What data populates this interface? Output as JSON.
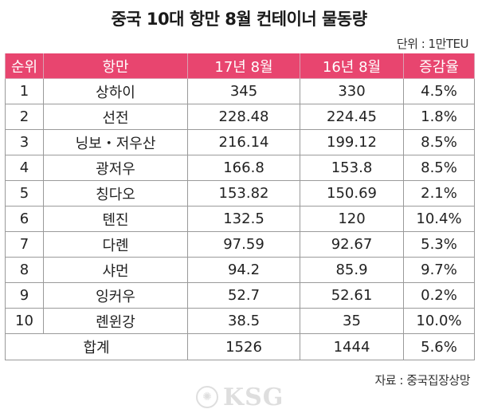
{
  "title": "중국 10대 항만 8월 컨테이너 물동량",
  "unit": "단위 : 1만TEU",
  "colors": {
    "header_bg": "#e8456f",
    "header_text": "#ffffff"
  },
  "table": {
    "headers": [
      "순위",
      "항만",
      "17년 8월",
      "16년 8월",
      "증감율"
    ],
    "rows": [
      [
        "1",
        "상하이",
        "345",
        "330",
        "4.5%"
      ],
      [
        "2",
        "선전",
        "228.48",
        "224.45",
        "1.8%"
      ],
      [
        "3",
        "닝보・저우산",
        "216.14",
        "199.12",
        "8.5%"
      ],
      [
        "4",
        "광저우",
        "166.8",
        "153.8",
        "8.5%"
      ],
      [
        "5",
        "칭다오",
        "153.82",
        "150.69",
        "2.1%"
      ],
      [
        "6",
        "톈진",
        "132.5",
        "120",
        "10.4%"
      ],
      [
        "7",
        "다롄",
        "97.59",
        "92.67",
        "5.3%"
      ],
      [
        "8",
        "샤먼",
        "94.2",
        "85.9",
        "9.7%"
      ],
      [
        "9",
        "잉커우",
        "52.7",
        "52.61",
        "0.2%"
      ],
      [
        "10",
        "롄윈강",
        "38.5",
        "35",
        "10.0%"
      ]
    ],
    "total": {
      "label": "합계",
      "y2017": "1526",
      "y2016": "1444",
      "change": "5.6%"
    }
  },
  "source": "자료 : 중국집장상망",
  "watermark": {
    "text": "KSG",
    "icon": "seal-icon"
  }
}
